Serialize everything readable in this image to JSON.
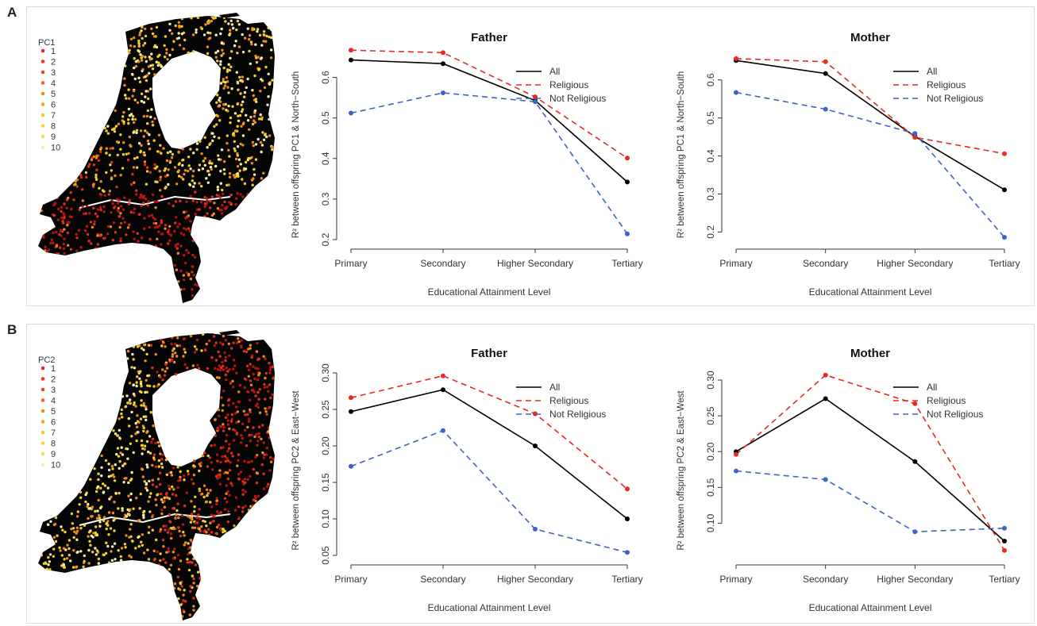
{
  "panels": [
    {
      "letter": "A",
      "map_legend": {
        "title": "PC1",
        "labels": [
          "1",
          "2",
          "3",
          "4",
          "5",
          "6",
          "7",
          "8",
          "9",
          "10"
        ]
      }
    },
    {
      "letter": "B",
      "map_legend": {
        "title": "PC2",
        "labels": [
          "1",
          "2",
          "3",
          "4",
          "5",
          "6",
          "7",
          "8",
          "9",
          "10"
        ]
      }
    }
  ],
  "legend_colors": [
    "#e8231e",
    "#e6361c",
    "#e74d1b",
    "#ea6a1c",
    "#ee8a1e",
    "#f2a821",
    "#f6c42a",
    "#f8d53e",
    "#f5e14f",
    "#fbeea2"
  ],
  "map_palette": {
    "land": "#050505",
    "dark_red": "#b8140f",
    "red": "#e0301a",
    "orange": "#ef8a1f",
    "yellow": "#f2cf2a",
    "pale": "#fbeea8"
  },
  "chart_data": [
    {
      "type": "line",
      "title": "Father",
      "xlabel": "Educational Attainment Level",
      "ylabel": "R² between offspring PC1 & North−South",
      "categories": [
        "Primary",
        "Secondary",
        "Higher Secondary",
        "Tertiary"
      ],
      "ylim": [
        0.2,
        0.65
      ],
      "yticks": [
        "0.2",
        "0.3",
        "0.4",
        "0.5",
        "0.6"
      ],
      "ytick_values": [
        0.2,
        0.3,
        0.4,
        0.5,
        0.6
      ],
      "legend_position": "top-right",
      "series": [
        {
          "name": "All",
          "color": "#000000",
          "dash": "solid",
          "values": [
            0.643,
            0.634,
            0.543,
            0.342
          ]
        },
        {
          "name": "Religious",
          "color": "#e52a24",
          "dash": "dashed",
          "values": [
            0.667,
            0.661,
            0.552,
            0.401
          ]
        },
        {
          "name": "Not Religious",
          "color": "#3d63c4",
          "dash": "dashed",
          "values": [
            0.512,
            0.562,
            0.54,
            0.214
          ]
        }
      ]
    },
    {
      "type": "line",
      "title": "Mother",
      "xlabel": "Educational Attainment Level",
      "ylabel": "R² between offspring PC1 & North−South",
      "categories": [
        "Primary",
        "Secondary",
        "Higher Secondary",
        "Tertiary"
      ],
      "ylim": [
        0.18,
        0.66
      ],
      "yticks": [
        "0.2",
        "0.3",
        "0.4",
        "0.5",
        "0.6"
      ],
      "ytick_values": [
        0.2,
        0.3,
        0.4,
        0.5,
        0.6
      ],
      "legend_position": "top-right",
      "series": [
        {
          "name": "All",
          "color": "#000000",
          "dash": "solid",
          "values": [
            0.651,
            0.617,
            0.451,
            0.311
          ]
        },
        {
          "name": "Religious",
          "color": "#e52a24",
          "dash": "dashed",
          "values": [
            0.656,
            0.648,
            0.449,
            0.406
          ]
        },
        {
          "name": "Not Religious",
          "color": "#3d63c4",
          "dash": "dashed",
          "values": [
            0.567,
            0.523,
            0.459,
            0.186
          ]
        }
      ]
    },
    {
      "type": "line",
      "title": "Father",
      "xlabel": "Educational Attainment Level",
      "ylabel": "R² between offspring PC2 & East−West",
      "categories": [
        "Primary",
        "Secondary",
        "Higher Secondary",
        "Tertiary"
      ],
      "ylim": [
        0.05,
        0.3
      ],
      "yticks": [
        "0.05",
        "0.10",
        "0.15",
        "0.20",
        "0.25",
        "0.30"
      ],
      "ytick_values": [
        0.05,
        0.1,
        0.15,
        0.2,
        0.25,
        0.3
      ],
      "legend_position": "top-right",
      "series": [
        {
          "name": "All",
          "color": "#000000",
          "dash": "solid",
          "values": [
            0.247,
            0.277,
            0.2,
            0.1
          ]
        },
        {
          "name": "Religious",
          "color": "#e52a24",
          "dash": "dashed",
          "values": [
            0.266,
            0.296,
            0.244,
            0.141
          ]
        },
        {
          "name": "Not Religious",
          "color": "#3d63c4",
          "dash": "dashed",
          "values": [
            0.172,
            0.221,
            0.086,
            0.054
          ]
        }
      ]
    },
    {
      "type": "line",
      "title": "Mother",
      "xlabel": "Educational Attainment Level",
      "ylabel": "R² between offspring PC2 & East−West",
      "categories": [
        "Primary",
        "Secondary",
        "Higher Secondary",
        "Tertiary"
      ],
      "ylim": [
        0.055,
        0.31
      ],
      "yticks": [
        "0.10",
        "0.15",
        "0.20",
        "0.25",
        "0.30"
      ],
      "ytick_values": [
        0.1,
        0.15,
        0.2,
        0.25,
        0.3
      ],
      "legend_position": "top-right",
      "series": [
        {
          "name": "All",
          "color": "#000000",
          "dash": "solid",
          "values": [
            0.2,
            0.274,
            0.186,
            0.075
          ]
        },
        {
          "name": "Religious",
          "color": "#e52a24",
          "dash": "dashed",
          "values": [
            0.196,
            0.307,
            0.267,
            0.062
          ]
        },
        {
          "name": "Not Religious",
          "color": "#3d63c4",
          "dash": "dashed",
          "values": [
            0.173,
            0.161,
            0.088,
            0.093
          ]
        }
      ]
    }
  ]
}
